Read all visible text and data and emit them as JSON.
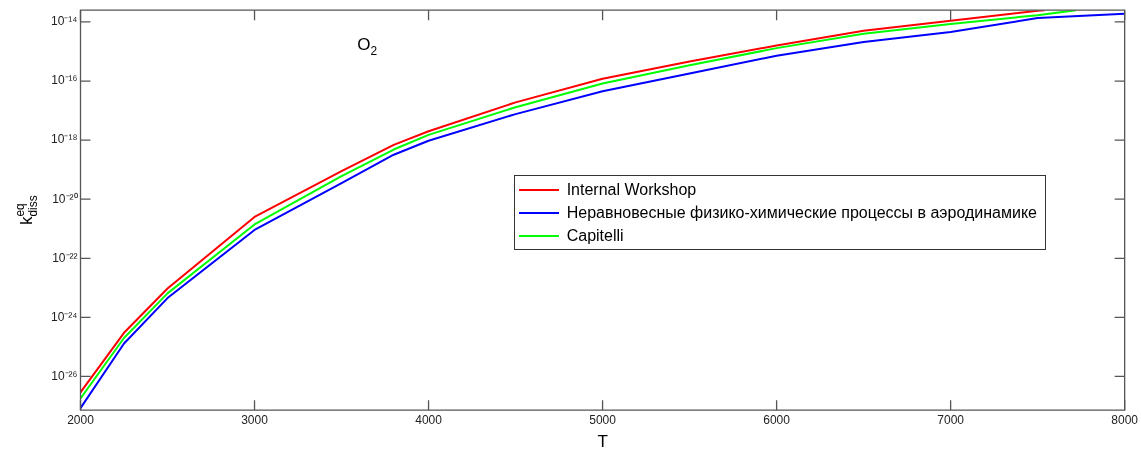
{
  "chart_data": {
    "type": "line",
    "xlabel": "T",
    "ylabel": "k$^{eq}$$_{diss}$",
    "annotations": [
      "O$_{2}$"
    ],
    "xlim": [
      2000,
      8000
    ],
    "xticks": [
      2000,
      3000,
      4000,
      5000,
      6000,
      7000,
      8000
    ],
    "ylim": [
      7.2e-28,
      2.5e-14
    ],
    "log": true,
    "yticks": [
      {
        "value": 1e-26,
        "label": "10⁻²⁶"
      },
      {
        "value": 1e-24,
        "label": "10⁻²⁴"
      },
      {
        "value": 1e-22,
        "label": "10⁻²²"
      },
      {
        "value": 1e-20,
        "label": "10⁻²⁰"
      },
      {
        "value": 1e-18,
        "label": "10⁻¹⁸"
      },
      {
        "value": 1e-16,
        "label": "10⁻¹⁶"
      },
      {
        "value": 1e-14,
        "label": "10⁻¹⁴"
      }
    ],
    "grid": false,
    "legend": "right",
    "marker": "none",
    "line_style": "solid",
    "series": [
      {
        "name": "Internal Workshop",
        "color": "#ff0000",
        "x": [
          2000,
          2250,
          2500,
          3000,
          3500,
          3800,
          4000,
          4500,
          5000,
          5500,
          6000,
          6500,
          7000,
          7500,
          7540
        ],
        "values": [
          2.9e-27,
          3e-25,
          9.5e-24,
          2.5e-21,
          8.9e-20,
          6.9e-19,
          2e-18,
          1.9e-17,
          1.2e-16,
          4.6e-16,
          1.6e-15,
          5e-15,
          1.1e-14,
          2.4e-14,
          2.5e-14
        ]
      },
      {
        "name": "Неравновесные физико-химические процессы в аэродинамике",
        "color": "#0000ff",
        "x": [
          2000,
          2250,
          2500,
          3000,
          3500,
          3800,
          4000,
          4500,
          5000,
          5500,
          6000,
          6500,
          7000,
          7500,
          8000
        ],
        "values": [
          8.5e-28,
          1.3e-25,
          4.5e-24,
          9.1e-22,
          3.5e-20,
          3.2e-19,
          9.5e-19,
          7.6e-18,
          4.5e-17,
          1.8e-16,
          7.2e-16,
          2.1e-15,
          4.6e-15,
          1.35e-14,
          1.9e-14
        ]
      },
      {
        "name": "Capitelli",
        "color": "#00ff00",
        "x": [
          2000,
          2250,
          2500,
          3000,
          3500,
          3800,
          4000,
          4500,
          5000,
          5500,
          6000,
          6500,
          7000,
          7500,
          7720
        ],
        "values": [
          1.8e-27,
          2e-25,
          6.5e-24,
          1.4e-21,
          6e-20,
          4.8e-19,
          1.5e-18,
          1.3e-17,
          8.3e-17,
          3.4e-16,
          1.3e-15,
          4e-15,
          8.5e-15,
          1.7e-14,
          2.5e-14
        ]
      }
    ]
  }
}
